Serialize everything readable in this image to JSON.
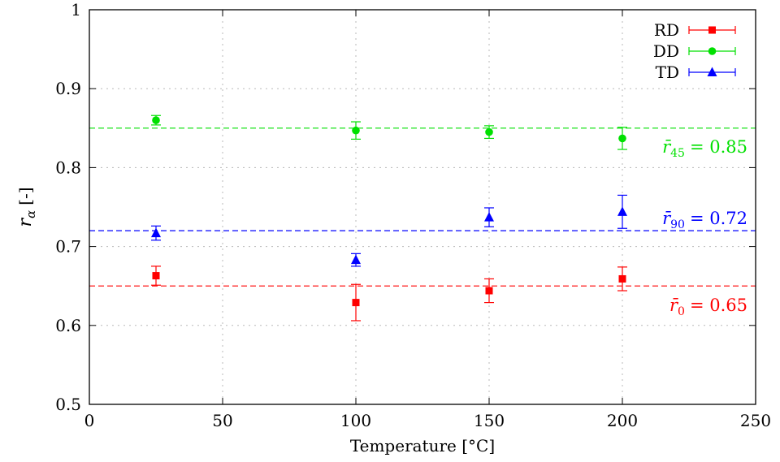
{
  "chart_data": {
    "type": "scatter",
    "xlabel": "Temperature [°C]",
    "ylabel": {
      "symbol": "r",
      "subscript": "α",
      "unit": "[-]"
    },
    "xlim": [
      0,
      250
    ],
    "ylim": [
      0.5,
      1.0
    ],
    "xticks": [
      0,
      50,
      100,
      150,
      200,
      250
    ],
    "yticks": [
      0.5,
      0.6,
      0.7,
      0.8,
      0.9,
      1.0
    ],
    "ytick_labels": [
      "0.5",
      "0.6",
      "0.7",
      "0.8",
      "0.9",
      "1"
    ],
    "grid": true,
    "legend_position": "top-right",
    "series": [
      {
        "name": "RD",
        "color": "#ff0000",
        "marker": "square",
        "x": [
          25,
          100,
          150,
          200
        ],
        "y": [
          0.663,
          0.629,
          0.644,
          0.659
        ],
        "err": [
          0.012,
          0.023,
          0.015,
          0.015
        ]
      },
      {
        "name": "DD",
        "color": "#00e000",
        "marker": "circle",
        "x": [
          25,
          100,
          150,
          200
        ],
        "y": [
          0.86,
          0.847,
          0.845,
          0.837
        ],
        "err": [
          0.006,
          0.011,
          0.008,
          0.014
        ]
      },
      {
        "name": "TD",
        "color": "#0000ff",
        "marker": "triangle",
        "x": [
          25,
          100,
          150,
          200
        ],
        "y": [
          0.717,
          0.683,
          0.737,
          0.744
        ],
        "err": [
          0.009,
          0.008,
          0.012,
          0.021
        ]
      }
    ],
    "reference_lines": [
      {
        "series": "DD",
        "y": 0.85,
        "color": "#00e000",
        "label_base": "r̄",
        "label_sub": "45",
        "label_rest": "= 0.85"
      },
      {
        "series": "TD",
        "y": 0.72,
        "color": "#0000ff",
        "label_base": "r̄",
        "label_sub": "90",
        "label_rest": "= 0.72"
      },
      {
        "series": "RD",
        "y": 0.65,
        "color": "#ff0000",
        "label_base": "r̄",
        "label_sub": "0",
        "label_rest": "= 0.65"
      }
    ]
  }
}
